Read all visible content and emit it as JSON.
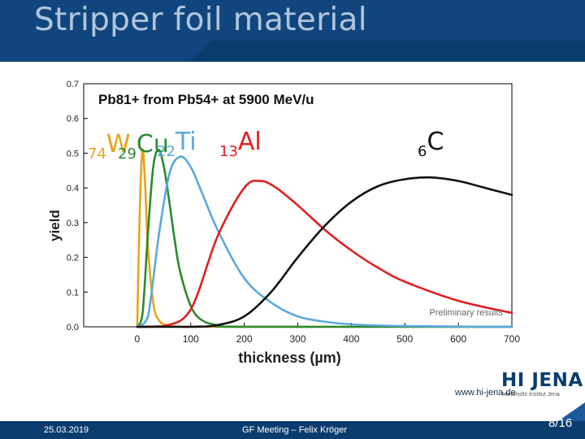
{
  "slide": {
    "title": "Stripper foil material",
    "footer_date": "25.03.2019",
    "footer_meeting": "GF Meeting – Felix Kröger",
    "url": "www.hi-jena.de",
    "page": "8/16",
    "logo": "HI JENA",
    "logo_subtitle": "Helmholtz Institut Jena",
    "colors": {
      "header": "#0a3d6e",
      "footer": "#0a3d6e",
      "accent": "#1e5a9a"
    }
  },
  "elements": [
    {
      "z": "74",
      "sym": "W",
      "color": "#e8a41a"
    },
    {
      "z": "29",
      "sym": "Cu",
      "color": "#2a8a2e"
    },
    {
      "z": "22",
      "sym": "Ti",
      "color": "#5aa8dc"
    },
    {
      "z": "13",
      "sym": "Al",
      "color": "#e02020"
    },
    {
      "z": "6",
      "sym": "C",
      "color": "#111111"
    }
  ],
  "chart_data": {
    "type": "line",
    "title": "Pb81+ from Pb54+ at 5900 MeV/u",
    "xlabel": "thickness (µm)",
    "ylabel": "yield",
    "xlim": [
      -100,
      700
    ],
    "ylim": [
      0.0,
      0.7
    ],
    "xticks": [
      0,
      100,
      200,
      300,
      400,
      500,
      600,
      700
    ],
    "yticks": [
      0.0,
      0.1,
      0.2,
      0.3,
      0.4,
      0.5,
      0.6,
      0.7
    ],
    "annotation": "Preliminary results",
    "series": [
      {
        "name": "74W",
        "color": "#e8a41a",
        "x": [
          0,
          5,
          10,
          15,
          20,
          30,
          40,
          60,
          100,
          200,
          700
        ],
        "y": [
          0,
          0.35,
          0.51,
          0.4,
          0.23,
          0.07,
          0.02,
          0.003,
          0,
          0,
          0
        ]
      },
      {
        "name": "29Cu",
        "color": "#2a8a2e",
        "x": [
          0,
          10,
          20,
          30,
          40,
          50,
          60,
          70,
          80,
          100,
          120,
          150,
          200,
          700
        ],
        "y": [
          0,
          0.04,
          0.27,
          0.46,
          0.51,
          0.46,
          0.36,
          0.25,
          0.16,
          0.06,
          0.02,
          0.005,
          0,
          0
        ]
      },
      {
        "name": "22Ti",
        "color": "#5aa8dc",
        "x": [
          0,
          20,
          40,
          60,
          80,
          100,
          120,
          150,
          200,
          250,
          300,
          350,
          400,
          500,
          700
        ],
        "y": [
          0,
          0.03,
          0.26,
          0.44,
          0.49,
          0.46,
          0.39,
          0.28,
          0.14,
          0.07,
          0.03,
          0.015,
          0.007,
          0.002,
          0
        ]
      },
      {
        "name": "13Al",
        "color": "#e02020",
        "x": [
          0,
          50,
          100,
          150,
          200,
          230,
          260,
          300,
          350,
          400,
          450,
          500,
          600,
          700
        ],
        "y": [
          0,
          0.002,
          0.05,
          0.26,
          0.4,
          0.42,
          0.4,
          0.35,
          0.28,
          0.22,
          0.17,
          0.13,
          0.075,
          0.04
        ]
      },
      {
        "name": "6C",
        "color": "#111111",
        "x": [
          0,
          100,
          150,
          200,
          250,
          300,
          350,
          400,
          450,
          500,
          550,
          600,
          650,
          700
        ],
        "y": [
          0,
          0,
          0.005,
          0.03,
          0.1,
          0.2,
          0.29,
          0.36,
          0.405,
          0.425,
          0.43,
          0.42,
          0.4,
          0.38
        ]
      }
    ]
  }
}
